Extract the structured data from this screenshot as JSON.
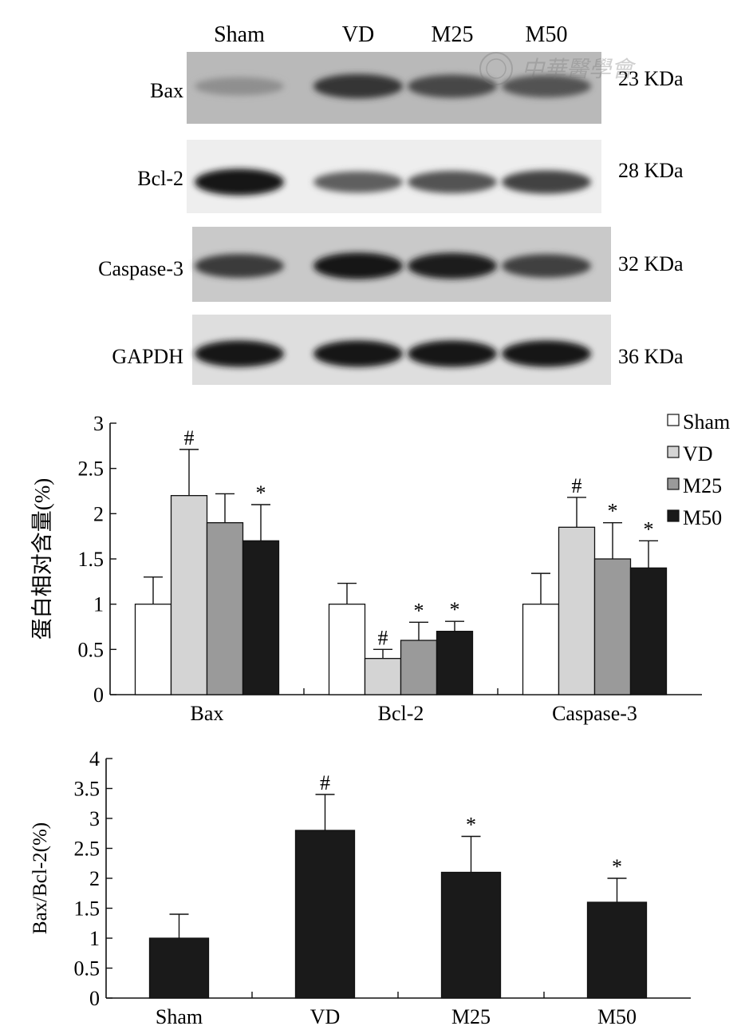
{
  "blot": {
    "lane_labels": [
      "Sham",
      "VD",
      "M25",
      "M50"
    ],
    "rows": [
      {
        "name": "Bax",
        "kda": "23 KDa",
        "intensity": [
          0.3,
          0.78,
          0.68,
          0.62
        ]
      },
      {
        "name": "Bcl-2",
        "kda": "28 KDa",
        "intensity": [
          0.95,
          0.55,
          0.62,
          0.7
        ]
      },
      {
        "name": "Caspase-3",
        "kda": "32 KDa",
        "intensity": [
          0.75,
          0.95,
          0.9,
          0.72
        ]
      },
      {
        "name": "GAPDH",
        "kda": "36 KDa",
        "intensity": [
          0.95,
          0.95,
          0.95,
          0.95
        ]
      }
    ],
    "watermark_text": "中華醫學會"
  },
  "chart_data": [
    {
      "type": "bar",
      "categories": [
        "Bax",
        "Bcl-2",
        "Caspase-3"
      ],
      "ylabel": "蛋白相对含量(%)",
      "ylim": [
        0,
        3
      ],
      "yticks": [
        "0",
        "0.5",
        "1",
        "1.5",
        "2",
        "2.5",
        "3"
      ],
      "legend_position": "top-right",
      "series": [
        {
          "name": "Sham",
          "color": "#ffffff",
          "values": [
            1.0,
            1.0,
            1.0
          ],
          "errors": [
            0.3,
            0.23,
            0.34
          ],
          "marks": [
            "",
            "",
            ""
          ]
        },
        {
          "name": "VD",
          "color": "#d4d4d4",
          "values": [
            2.2,
            0.4,
            1.85
          ],
          "errors": [
            0.51,
            0.1,
            0.33
          ],
          "marks": [
            "#",
            "#",
            "#"
          ]
        },
        {
          "name": "M25",
          "color": "#9a9a9a",
          "values": [
            1.9,
            0.6,
            1.5
          ],
          "errors": [
            0.32,
            0.2,
            0.4
          ],
          "marks": [
            "",
            "*",
            "*"
          ]
        },
        {
          "name": "M50",
          "color": "#1a1a1a",
          "values": [
            1.7,
            0.7,
            1.4
          ],
          "errors": [
            0.4,
            0.11,
            0.3
          ],
          "marks": [
            "*",
            "*",
            "*"
          ]
        }
      ]
    },
    {
      "type": "bar",
      "categories": [
        "Sham",
        "VD",
        "M25",
        "M50"
      ],
      "ylabel": "Bax/Bcl-2(%)",
      "ylim": [
        0,
        4
      ],
      "yticks": [
        "0",
        "0.5",
        "1",
        "1.5",
        "2",
        "2.5",
        "3",
        "3.5",
        "4"
      ],
      "series": [
        {
          "color": "#1a1a1a",
          "values": [
            1.0,
            2.8,
            2.1,
            1.6
          ],
          "errors": [
            0.4,
            0.6,
            0.6,
            0.4
          ],
          "marks": [
            "",
            "#",
            "*",
            "*"
          ]
        }
      ]
    }
  ]
}
